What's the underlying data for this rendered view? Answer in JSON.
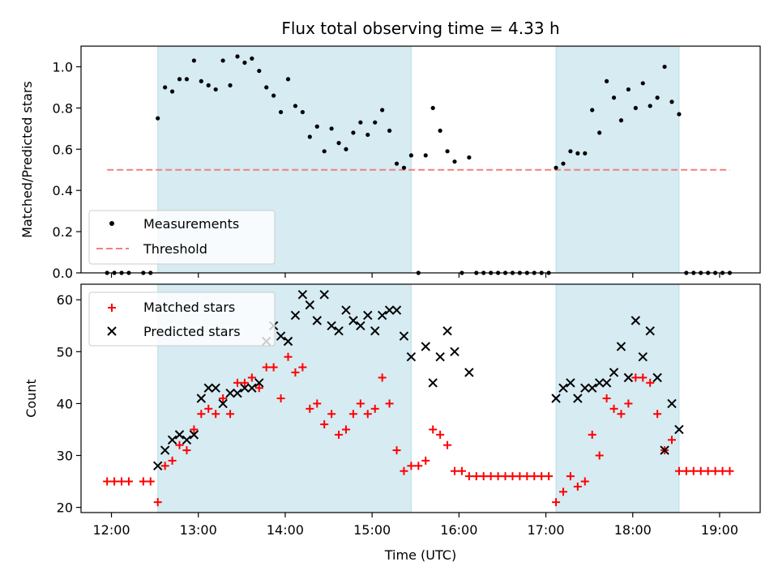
{
  "chart_data": [
    {
      "type": "scatter",
      "title": "Flux total observing time = 4.33 h",
      "xlabel": "",
      "ylabel": "Matched/Predicted stars",
      "ylim": [
        0,
        1.1
      ],
      "xlim": [
        "11:39",
        "19:28"
      ],
      "yticks": [
        "0.0",
        "0.2",
        "0.4",
        "0.6",
        "0.8",
        "1.0"
      ],
      "legend_position": "lower left",
      "shaded_intervals": [
        [
          "12:32",
          "15:27"
        ],
        [
          "17:07",
          "18:32"
        ]
      ],
      "shade_color": "#add8e6",
      "threshold": {
        "name": "Threshold",
        "value": 0.5,
        "x_range": [
          "11:57",
          "19:07"
        ],
        "color": "#f08080"
      },
      "series": [
        {
          "name": "Measurements",
          "color": "#000000",
          "points": [
            [
              "11:57",
              0
            ],
            [
              "12:02",
              0
            ],
            [
              "12:07",
              0
            ],
            [
              "12:12",
              0
            ],
            [
              "12:22",
              0
            ],
            [
              "12:27",
              0
            ],
            [
              "12:32",
              0.75
            ],
            [
              "12:37",
              0.9
            ],
            [
              "12:42",
              0.88
            ],
            [
              "12:47",
              0.94
            ],
            [
              "12:52",
              0.94
            ],
            [
              "12:57",
              1.03
            ],
            [
              "13:02",
              0.93
            ],
            [
              "13:07",
              0.91
            ],
            [
              "13:12",
              0.89
            ],
            [
              "13:17",
              1.03
            ],
            [
              "13:22",
              0.91
            ],
            [
              "13:27",
              1.05
            ],
            [
              "13:32",
              1.02
            ],
            [
              "13:37",
              1.04
            ],
            [
              "13:42",
              0.98
            ],
            [
              "13:47",
              0.9
            ],
            [
              "13:52",
              0.86
            ],
            [
              "13:57",
              0.78
            ],
            [
              "14:02",
              0.94
            ],
            [
              "14:07",
              0.81
            ],
            [
              "14:12",
              0.78
            ],
            [
              "14:17",
              0.66
            ],
            [
              "14:22",
              0.71
            ],
            [
              "14:27",
              0.59
            ],
            [
              "14:32",
              0.7
            ],
            [
              "14:37",
              0.63
            ],
            [
              "14:42",
              0.6
            ],
            [
              "14:47",
              0.68
            ],
            [
              "14:52",
              0.73
            ],
            [
              "14:57",
              0.67
            ],
            [
              "15:02",
              0.73
            ],
            [
              "15:07",
              0.79
            ],
            [
              "15:12",
              0.69
            ],
            [
              "15:17",
              0.53
            ],
            [
              "15:22",
              0.51
            ],
            [
              "15:27",
              0.57
            ],
            [
              "15:32",
              0
            ],
            [
              "15:37",
              0.57
            ],
            [
              "15:42",
              0.8
            ],
            [
              "15:47",
              0.69
            ],
            [
              "15:52",
              0.59
            ],
            [
              "15:57",
              0.54
            ],
            [
              "16:02",
              0
            ],
            [
              "16:07",
              0.56
            ],
            [
              "16:12",
              0
            ],
            [
              "16:17",
              0
            ],
            [
              "16:22",
              0
            ],
            [
              "16:27",
              0
            ],
            [
              "16:32",
              0
            ],
            [
              "16:37",
              0
            ],
            [
              "16:42",
              0
            ],
            [
              "16:47",
              0
            ],
            [
              "16:52",
              0
            ],
            [
              "16:57",
              0
            ],
            [
              "17:02",
              0
            ],
            [
              "17:07",
              0.51
            ],
            [
              "17:12",
              0.53
            ],
            [
              "17:17",
              0.59
            ],
            [
              "17:22",
              0.58
            ],
            [
              "17:27",
              0.58
            ],
            [
              "17:32",
              0.79
            ],
            [
              "17:37",
              0.68
            ],
            [
              "17:42",
              0.93
            ],
            [
              "17:47",
              0.85
            ],
            [
              "17:52",
              0.74
            ],
            [
              "17:57",
              0.89
            ],
            [
              "18:02",
              0.8
            ],
            [
              "18:07",
              0.92
            ],
            [
              "18:12",
              0.81
            ],
            [
              "18:17",
              0.85
            ],
            [
              "18:22",
              1.0
            ],
            [
              "18:27",
              0.83
            ],
            [
              "18:32",
              0.77
            ],
            [
              "18:37",
              0
            ],
            [
              "18:42",
              0
            ],
            [
              "18:47",
              0
            ],
            [
              "18:52",
              0
            ],
            [
              "18:57",
              0
            ],
            [
              "19:02",
              0
            ],
            [
              "19:07",
              0
            ]
          ]
        }
      ]
    },
    {
      "type": "scatter",
      "title": "",
      "xlabel": "Time (UTC)",
      "ylabel": "Count",
      "ylim": [
        19,
        63
      ],
      "xlim": [
        "11:39",
        "19:28"
      ],
      "yticks": [
        "20",
        "30",
        "40",
        "50",
        "60"
      ],
      "xticks": [
        "12:00",
        "13:00",
        "14:00",
        "15:00",
        "16:00",
        "17:00",
        "18:00",
        "19:00"
      ],
      "legend_position": "upper left",
      "shaded_intervals": [
        [
          "12:32",
          "15:27"
        ],
        [
          "17:07",
          "18:32"
        ]
      ],
      "shade_color": "#add8e6",
      "series": [
        {
          "name": "Matched stars",
          "marker": "plus",
          "color": "#ff0000",
          "points": [
            [
              "11:57",
              25
            ],
            [
              "12:02",
              25
            ],
            [
              "12:07",
              25
            ],
            [
              "12:12",
              25
            ],
            [
              "12:22",
              25
            ],
            [
              "12:27",
              25
            ],
            [
              "12:32",
              21
            ],
            [
              "12:37",
              28
            ],
            [
              "12:42",
              29
            ],
            [
              "12:47",
              32
            ],
            [
              "12:52",
              31
            ],
            [
              "12:57",
              35
            ],
            [
              "13:02",
              38
            ],
            [
              "13:07",
              39
            ],
            [
              "13:12",
              38
            ],
            [
              "13:17",
              41
            ],
            [
              "13:22",
              38
            ],
            [
              "13:27",
              44
            ],
            [
              "13:32",
              44
            ],
            [
              "13:37",
              45
            ],
            [
              "13:42",
              43
            ],
            [
              "13:47",
              47
            ],
            [
              "13:52",
              47
            ],
            [
              "13:57",
              41
            ],
            [
              "14:02",
              49
            ],
            [
              "14:07",
              46
            ],
            [
              "14:12",
              47
            ],
            [
              "14:17",
              39
            ],
            [
              "14:22",
              40
            ],
            [
              "14:27",
              36
            ],
            [
              "14:32",
              38
            ],
            [
              "14:37",
              34
            ],
            [
              "14:42",
              35
            ],
            [
              "14:47",
              38
            ],
            [
              "14:52",
              40
            ],
            [
              "14:57",
              38
            ],
            [
              "15:02",
              39
            ],
            [
              "15:07",
              45
            ],
            [
              "15:12",
              40
            ],
            [
              "15:17",
              31
            ],
            [
              "15:22",
              27
            ],
            [
              "15:27",
              28
            ],
            [
              "15:32",
              28
            ],
            [
              "15:37",
              29
            ],
            [
              "15:42",
              35
            ],
            [
              "15:47",
              34
            ],
            [
              "15:52",
              32
            ],
            [
              "15:57",
              27
            ],
            [
              "16:02",
              27
            ],
            [
              "16:07",
              26
            ],
            [
              "16:12",
              26
            ],
            [
              "16:17",
              26
            ],
            [
              "16:22",
              26
            ],
            [
              "16:27",
              26
            ],
            [
              "16:32",
              26
            ],
            [
              "16:37",
              26
            ],
            [
              "16:42",
              26
            ],
            [
              "16:47",
              26
            ],
            [
              "16:52",
              26
            ],
            [
              "16:57",
              26
            ],
            [
              "17:02",
              26
            ],
            [
              "17:07",
              21
            ],
            [
              "17:12",
              23
            ],
            [
              "17:17",
              26
            ],
            [
              "17:22",
              24
            ],
            [
              "17:27",
              25
            ],
            [
              "17:32",
              34
            ],
            [
              "17:37",
              30
            ],
            [
              "17:42",
              41
            ],
            [
              "17:47",
              39
            ],
            [
              "17:52",
              38
            ],
            [
              "17:57",
              40
            ],
            [
              "18:02",
              45
            ],
            [
              "18:07",
              45
            ],
            [
              "18:12",
              44
            ],
            [
              "18:17",
              38
            ],
            [
              "18:22",
              31
            ],
            [
              "18:27",
              33
            ],
            [
              "18:32",
              27
            ],
            [
              "18:37",
              27
            ],
            [
              "18:42",
              27
            ],
            [
              "18:47",
              27
            ],
            [
              "18:52",
              27
            ],
            [
              "18:57",
              27
            ],
            [
              "19:02",
              27
            ],
            [
              "19:07",
              27
            ]
          ]
        },
        {
          "name": "Predicted stars",
          "marker": "x",
          "color": "#000000",
          "points": [
            [
              "12:32",
              28
            ],
            [
              "12:37",
              31
            ],
            [
              "12:42",
              33
            ],
            [
              "12:47",
              34
            ],
            [
              "12:52",
              33
            ],
            [
              "12:57",
              34
            ],
            [
              "13:02",
              41
            ],
            [
              "13:07",
              43
            ],
            [
              "13:12",
              43
            ],
            [
              "13:17",
              40
            ],
            [
              "13:22",
              42
            ],
            [
              "13:27",
              42
            ],
            [
              "13:32",
              43
            ],
            [
              "13:37",
              43
            ],
            [
              "13:42",
              44
            ],
            [
              "13:47",
              52
            ],
            [
              "13:52",
              55
            ],
            [
              "13:57",
              53
            ],
            [
              "14:02",
              52
            ],
            [
              "14:07",
              57
            ],
            [
              "14:12",
              61
            ],
            [
              "14:17",
              59
            ],
            [
              "14:22",
              56
            ],
            [
              "14:27",
              61
            ],
            [
              "14:32",
              55
            ],
            [
              "14:37",
              54
            ],
            [
              "14:42",
              58
            ],
            [
              "14:47",
              56
            ],
            [
              "14:52",
              55
            ],
            [
              "14:57",
              57
            ],
            [
              "15:02",
              54
            ],
            [
              "15:07",
              57
            ],
            [
              "15:12",
              58
            ],
            [
              "15:17",
              58
            ],
            [
              "15:22",
              53
            ],
            [
              "15:27",
              49
            ],
            [
              "15:37",
              51
            ],
            [
              "15:42",
              44
            ],
            [
              "15:47",
              49
            ],
            [
              "15:52",
              54
            ],
            [
              "15:57",
              50
            ],
            [
              "16:07",
              46
            ],
            [
              "17:07",
              41
            ],
            [
              "17:12",
              43
            ],
            [
              "17:17",
              44
            ],
            [
              "17:22",
              41
            ],
            [
              "17:27",
              43
            ],
            [
              "17:32",
              43
            ],
            [
              "17:37",
              44
            ],
            [
              "17:42",
              44
            ],
            [
              "17:47",
              46
            ],
            [
              "17:52",
              51
            ],
            [
              "17:57",
              45
            ],
            [
              "18:02",
              56
            ],
            [
              "18:07",
              49
            ],
            [
              "18:12",
              54
            ],
            [
              "18:17",
              45
            ],
            [
              "18:22",
              31
            ],
            [
              "18:27",
              40
            ],
            [
              "18:32",
              35
            ]
          ]
        }
      ]
    }
  ]
}
